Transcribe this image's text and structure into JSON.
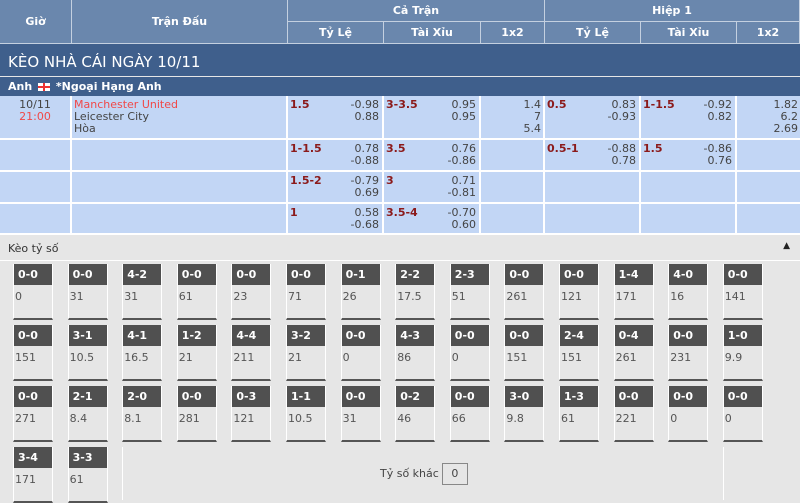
{
  "header": {
    "gio": "Giờ",
    "tran_dau": "Trận Đấu",
    "ca_tran": "Cả Trận",
    "hiep1": "Hiệp 1",
    "ty_le": "Tỷ Lệ",
    "tai_xiu": "Tài Xỉu",
    "x12": "1x2"
  },
  "title": "KÈO NHÀ CÁI NGÀY 10/11",
  "league": {
    "country": "Anh",
    "name": "*Ngoại Hạng Anh"
  },
  "match": {
    "date": "10/11",
    "time": "21:00",
    "home": "Manchester United",
    "away": "Leicester City",
    "draw": "Hòa"
  },
  "rows": [
    {
      "ft_hc": "1.5",
      "ft_hc_o": [
        "-0.98",
        "0.88"
      ],
      "ft_ou": "3-3.5",
      "ft_ou_o": [
        "0.95",
        "0.95"
      ],
      "ft_1x2": [
        "1.4",
        "7",
        "5.4"
      ],
      "h1_hc": "0.5",
      "h1_hc_o": [
        "0.83",
        "-0.93"
      ],
      "h1_ou": "1-1.5",
      "h1_ou_o": [
        "-0.92",
        "0.82"
      ],
      "h1_1x2": [
        "1.82",
        "6.2",
        "2.69"
      ]
    },
    {
      "ft_hc": "1-1.5",
      "ft_hc_o": [
        "0.78",
        "-0.88"
      ],
      "ft_ou": "3.5",
      "ft_ou_o": [
        "0.76",
        "-0.86"
      ],
      "ft_1x2": [
        "",
        "",
        ""
      ],
      "h1_hc": "0.5-1",
      "h1_hc_o": [
        "-0.88",
        "0.78"
      ],
      "h1_ou": "1.5",
      "h1_ou_o": [
        "-0.86",
        "0.76"
      ],
      "h1_1x2": [
        "",
        "",
        ""
      ]
    },
    {
      "ft_hc": "1.5-2",
      "ft_hc_o": [
        "-0.79",
        "0.69"
      ],
      "ft_ou": "3",
      "ft_ou_o": [
        "0.71",
        "-0.81"
      ],
      "ft_1x2": [
        "",
        "",
        ""
      ],
      "h1_hc": "",
      "h1_hc_o": [
        "",
        ""
      ],
      "h1_ou": "",
      "h1_ou_o": [
        "",
        ""
      ],
      "h1_1x2": [
        "",
        "",
        ""
      ]
    },
    {
      "ft_hc": "1",
      "ft_hc_o": [
        "0.58",
        "-0.68"
      ],
      "ft_ou": "3.5-4",
      "ft_ou_o": [
        "-0.70",
        "0.60"
      ],
      "ft_1x2": [
        "",
        "",
        ""
      ],
      "h1_hc": "",
      "h1_hc_o": [
        "",
        ""
      ],
      "h1_ou": "",
      "h1_ou_o": [
        "",
        ""
      ],
      "h1_1x2": [
        "",
        "",
        ""
      ]
    }
  ],
  "correct_score": {
    "label": "Kèo tỷ số",
    "collapse_icon": "triangle-up-icon",
    "cells": [
      [
        [
          "0-0",
          "0"
        ],
        [
          "0-0",
          "31"
        ],
        [
          "4-2",
          "31"
        ],
        [
          "0-0",
          "61"
        ],
        [
          "0-0",
          "23"
        ],
        [
          "0-0",
          "71"
        ],
        [
          "0-1",
          "26"
        ],
        [
          "2-2",
          "17.5"
        ],
        [
          "2-3",
          "51"
        ],
        [
          "0-0",
          "261"
        ],
        [
          "0-0",
          "121"
        ],
        [
          "1-4",
          "171"
        ],
        [
          "4-0",
          "16"
        ],
        [
          "0-0",
          "141"
        ]
      ],
      [
        [
          "0-0",
          "151"
        ],
        [
          "3-1",
          "10.5"
        ],
        [
          "4-1",
          "16.5"
        ],
        [
          "1-2",
          "21"
        ],
        [
          "4-4",
          "211"
        ],
        [
          "3-2",
          "21"
        ],
        [
          "0-0",
          "0"
        ],
        [
          "4-3",
          "86"
        ],
        [
          "0-0",
          "0"
        ],
        [
          "0-0",
          "151"
        ],
        [
          "2-4",
          "151"
        ],
        [
          "0-4",
          "261"
        ],
        [
          "0-0",
          "231"
        ],
        [
          "1-0",
          "9.9"
        ]
      ],
      [
        [
          "0-0",
          "271"
        ],
        [
          "2-1",
          "8.4"
        ],
        [
          "2-0",
          "8.1"
        ],
        [
          "0-0",
          "281"
        ],
        [
          "0-3",
          "121"
        ],
        [
          "1-1",
          "10.5"
        ],
        [
          "0-0",
          "31"
        ],
        [
          "0-2",
          "46"
        ],
        [
          "0-0",
          "66"
        ],
        [
          "3-0",
          "9.8"
        ],
        [
          "1-3",
          "61"
        ],
        [
          "0-0",
          "221"
        ],
        [
          "0-0",
          "0"
        ],
        [
          "0-0",
          "0"
        ]
      ],
      [
        [
          "3-4",
          "171"
        ],
        [
          "3-3",
          "61"
        ]
      ]
    ],
    "other_label": "Tỷ số khác",
    "other_value": "0"
  }
}
